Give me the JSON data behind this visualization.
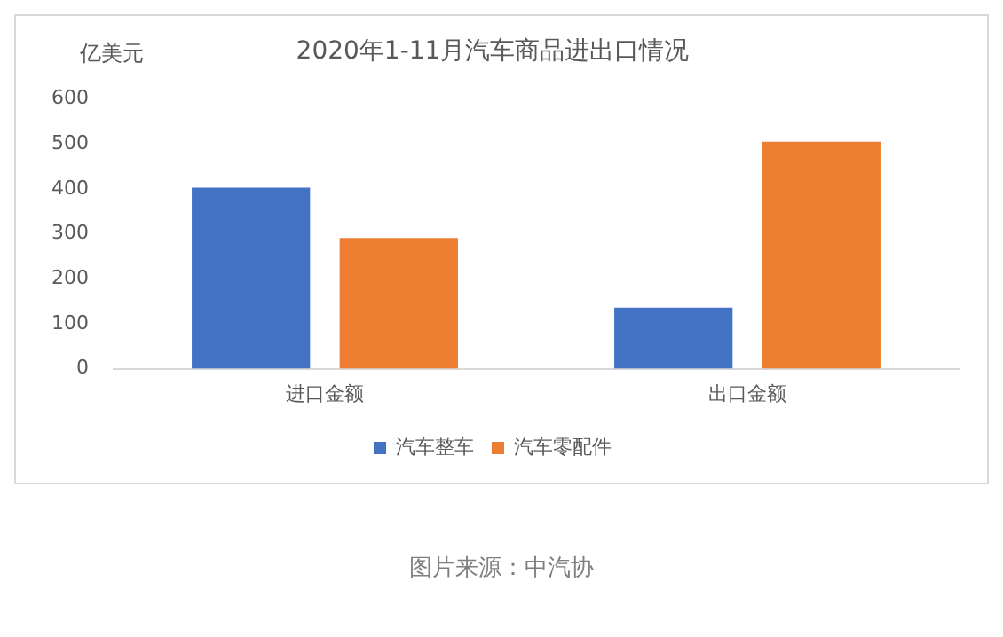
{
  "chart_data": {
    "type": "bar",
    "title": "2020年1-11月汽车商品进出口情况",
    "ylabel": "亿美元",
    "categories": [
      "进口金额",
      "出口金额"
    ],
    "series": [
      {
        "name": "汽车整车",
        "color": "#4472c4",
        "values": [
          403,
          136
        ]
      },
      {
        "name": "汽车零配件",
        "color": "#ed7d31",
        "values": [
          291,
          505
        ]
      }
    ],
    "ylim": [
      0,
      600
    ],
    "yticks": [
      0,
      100,
      200,
      300,
      400,
      500,
      600
    ],
    "grid": false,
    "legend": "bottom",
    "annotations": [
      "图片来源：中汽协"
    ]
  }
}
